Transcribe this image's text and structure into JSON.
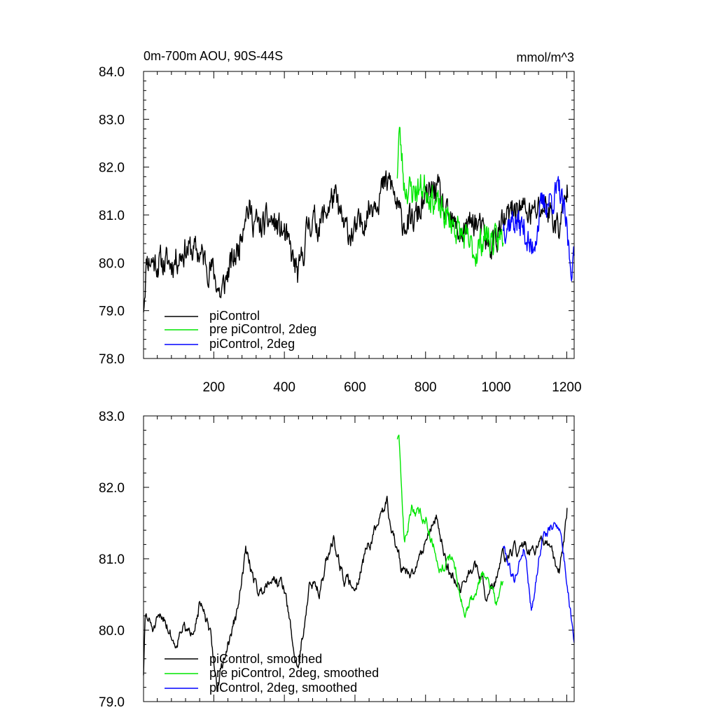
{
  "colors": {
    "piControl": "#000000",
    "pre_piControl_2deg": "#00e600",
    "piControl_2deg": "#0000ff"
  },
  "chart_data": [
    {
      "type": "line",
      "title_left": "0m-700m AOU, 90S-44S",
      "title_right": "mmol/m^3",
      "xlabel": "",
      "ylabel": "",
      "xlim": [
        1,
        1221
      ],
      "ylim": [
        78.0,
        84.0
      ],
      "x_ticks": [
        200,
        400,
        600,
        800,
        1000,
        1200
      ],
      "x_tick_labels": [
        "200",
        "400",
        "600",
        "800",
        "1000",
        "1200"
      ],
      "y_ticks": [
        78.0,
        79.0,
        80.0,
        81.0,
        82.0,
        83.0,
        84.0
      ],
      "y_tick_labels": [
        "78.0",
        "79.0",
        "80.0",
        "81.0",
        "82.0",
        "83.0",
        "84.0"
      ],
      "legend_position": "bottom-left",
      "series": [
        {
          "name": "piControl",
          "color_key": "piControl",
          "seed": 11,
          "noise": 0.32,
          "smooth": 0.55,
          "x": [
            1,
            10,
            40,
            80,
            120,
            160,
            200,
            220,
            240,
            270,
            290,
            330,
            360,
            400,
            440,
            470,
            500,
            540,
            570,
            600,
            630,
            660,
            700,
            730,
            760,
            800,
            830,
            860,
            900,
            940,
            980,
            1020,
            1060,
            1100,
            1140,
            1180,
            1201,
            1203
          ],
          "values": [
            79.1,
            80.1,
            80.0,
            80.0,
            80.3,
            80.2,
            79.8,
            79.3,
            79.8,
            80.3,
            81.2,
            80.7,
            80.9,
            80.6,
            79.7,
            80.9,
            80.8,
            81.4,
            80.7,
            80.6,
            81.0,
            81.4,
            81.7,
            80.9,
            80.8,
            81.3,
            81.6,
            80.9,
            80.6,
            80.9,
            80.3,
            80.8,
            81.2,
            81.0,
            81.2,
            80.7,
            81.5,
            81.5
          ]
        },
        {
          "name": "pre piControl, 2deg",
          "color_key": "pre_piControl_2deg",
          "seed": 23,
          "noise": 0.3,
          "smooth": 0.5,
          "x": [
            720,
            725,
            740,
            760,
            800,
            840,
            880,
            910,
            940,
            970,
            1000,
            1020
          ],
          "values": [
            81.9,
            82.8,
            81.6,
            81.5,
            81.6,
            81.1,
            80.8,
            80.5,
            80.2,
            80.6,
            80.4,
            80.6
          ]
        },
        {
          "name": "piControl, 2deg",
          "color_key": "piControl_2deg",
          "seed": 37,
          "noise": 0.3,
          "smooth": 0.5,
          "x": [
            1020,
            1050,
            1080,
            1100,
            1130,
            1150,
            1180,
            1200,
            1210,
            1221
          ],
          "values": [
            80.8,
            80.9,
            80.7,
            80.2,
            81.2,
            81.3,
            81.5,
            80.7,
            80.0,
            80.0
          ]
        }
      ]
    },
    {
      "type": "line",
      "title_left": "",
      "title_right": "",
      "xlabel": "",
      "ylabel": "",
      "xlim": [
        1,
        1221
      ],
      "ylim": [
        79.0,
        83.0
      ],
      "y_ticks": [
        79.0,
        80.0,
        81.0,
        82.0,
        83.0
      ],
      "y_tick_labels": [
        "79.0",
        "80.0",
        "81.0",
        "82.0",
        "83.0"
      ],
      "legend_position": "bottom-left",
      "series": [
        {
          "name": "piControl, smoothed",
          "color_key": "piControl",
          "seed": 51,
          "noise": 0.18,
          "smooth": 0.8,
          "x": [
            1,
            6,
            30,
            60,
            90,
            110,
            130,
            160,
            190,
            210,
            240,
            270,
            290,
            330,
            360,
            400,
            430,
            440,
            470,
            500,
            540,
            570,
            600,
            630,
            660,
            690,
            700,
            730,
            760,
            800,
            830,
            860,
            900,
            940,
            980,
            1020,
            1060,
            1100,
            1140,
            1180,
            1201
          ],
          "values": [
            79.4,
            80.2,
            80.0,
            80.2,
            79.8,
            80.1,
            79.9,
            80.4,
            79.9,
            79.2,
            79.8,
            80.3,
            81.1,
            80.5,
            80.8,
            80.6,
            79.6,
            79.5,
            80.6,
            80.6,
            81.3,
            80.7,
            80.6,
            81.1,
            81.4,
            81.8,
            81.5,
            80.9,
            80.7,
            81.3,
            81.6,
            80.9,
            80.6,
            80.9,
            80.4,
            81.0,
            81.1,
            81.1,
            81.2,
            80.8,
            81.7
          ]
        },
        {
          "name": "pre piControl, 2deg, smoothed",
          "color_key": "pre_piControl_2deg",
          "seed": 63,
          "noise": 0.16,
          "smooth": 0.8,
          "x": [
            720,
            725,
            740,
            760,
            800,
            840,
            880,
            910,
            940,
            970,
            1000,
            1020
          ],
          "values": [
            82.7,
            82.6,
            81.2,
            81.7,
            81.6,
            80.9,
            81.0,
            80.2,
            80.5,
            80.8,
            80.4,
            80.7
          ]
        },
        {
          "name": "piControl, 2deg, smoothed",
          "color_key": "piControl_2deg",
          "seed": 79,
          "noise": 0.16,
          "smooth": 0.8,
          "x": [
            1020,
            1050,
            1080,
            1100,
            1130,
            1150,
            1180,
            1200,
            1210,
            1221
          ],
          "values": [
            81.2,
            80.7,
            81.2,
            80.3,
            81.3,
            81.4,
            81.5,
            80.7,
            80.3,
            79.9
          ]
        }
      ]
    }
  ]
}
